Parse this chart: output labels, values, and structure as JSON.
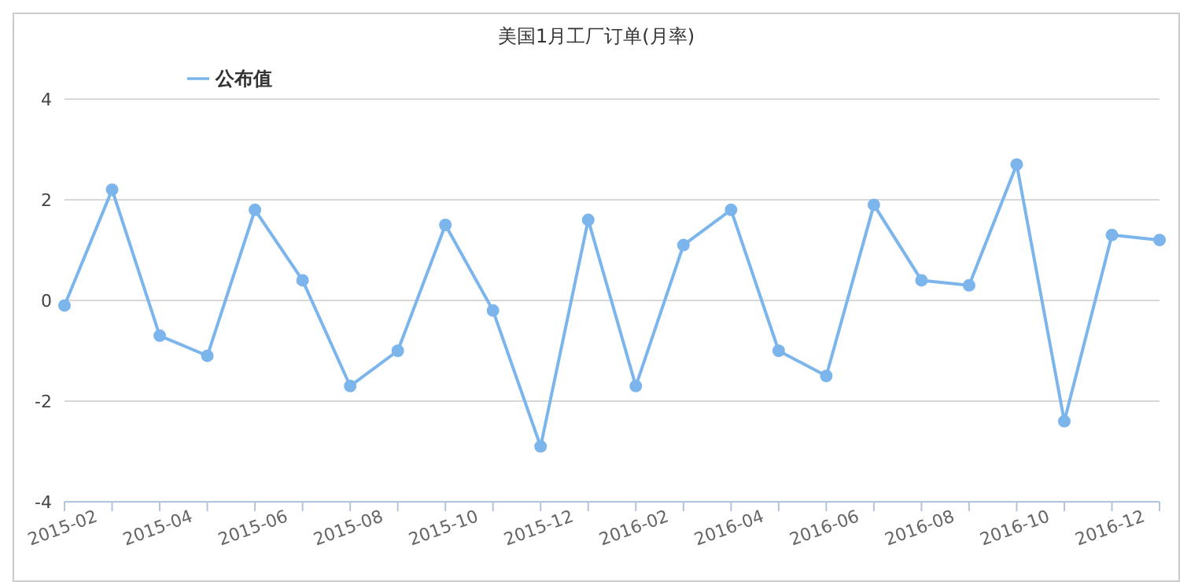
{
  "chart_data": {
    "type": "line",
    "title": "美国1月工厂订单(月率)",
    "categories": [
      "2015-02",
      null,
      "2015-04",
      null,
      "2015-06",
      null,
      "2015-08",
      null,
      "2015-10",
      null,
      "2015-12",
      null,
      "2016-02",
      null,
      "2016-04",
      null,
      "2016-06",
      null,
      "2016-08",
      null,
      "2016-10",
      null,
      "2016-12",
      null
    ],
    "series": [
      {
        "name": "公布值",
        "color": "#7cb5ec",
        "values": [
          -0.1,
          2.2,
          -0.7,
          -1.1,
          1.8,
          0.4,
          -1.7,
          -1.0,
          1.5,
          -0.2,
          -2.9,
          1.6,
          -1.7,
          1.1,
          1.8,
          -1.0,
          -1.5,
          1.9,
          0.4,
          0.3,
          2.7,
          -2.4,
          1.3,
          1.2
        ]
      }
    ],
    "ylim": [
      -4,
      4
    ],
    "yticks": [
      -4,
      -2,
      0,
      2,
      4
    ],
    "grid": "y",
    "legend": "top left",
    "marker": "circle",
    "line_style": "solid"
  }
}
